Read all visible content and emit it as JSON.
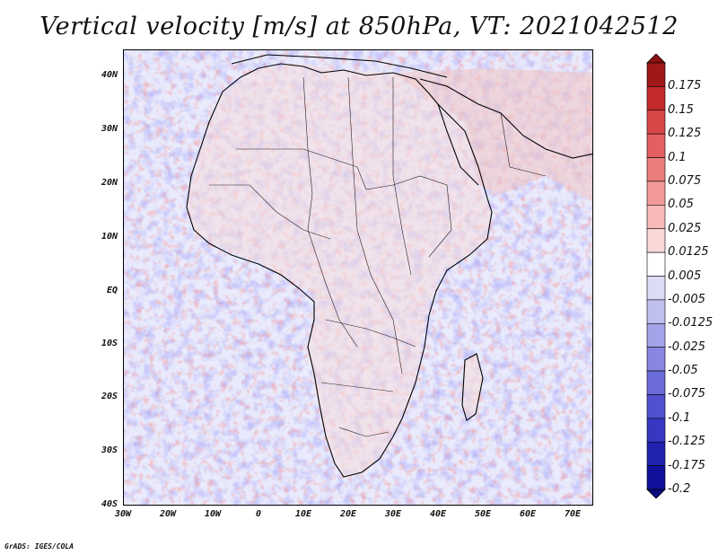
{
  "title": "Vertical velocity [m/s] at 850hPa, VT: 2021042512",
  "credit": "GrADS: IGES/COLA",
  "map": {
    "latitude_ticks": [
      "40N",
      "30N",
      "20N",
      "10N",
      "EQ",
      "10S",
      "20S",
      "30S",
      "40S"
    ],
    "longitude_ticks": [
      "30W",
      "20W",
      "10W",
      "0",
      "10E",
      "20E",
      "30E",
      "40E",
      "50E",
      "60E",
      "70E"
    ]
  },
  "colorbar": {
    "labels": [
      "0.175",
      "0.15",
      "0.125",
      "0.1",
      "0.075",
      "0.05",
      "0.025",
      "0.0125",
      "0.005",
      "-0.005",
      "-0.0125",
      "-0.025",
      "-0.05",
      "-0.075",
      "-0.1",
      "-0.125",
      "-0.175",
      "-0.2"
    ],
    "colors": [
      "#a01818",
      "#c42a2a",
      "#d94646",
      "#e46060",
      "#ec7d7d",
      "#f29a9a",
      "#f7b9b9",
      "#fbd8d8",
      "#ffffff",
      "#dcdcf7",
      "#c0c0f0",
      "#a3a3ea",
      "#8787e2",
      "#6b6bd9",
      "#5050d0",
      "#3737c2",
      "#2222b0",
      "#10109a"
    ],
    "top_arrow_color": "#8b1010",
    "bottom_arrow_color": "#0a0a80"
  }
}
